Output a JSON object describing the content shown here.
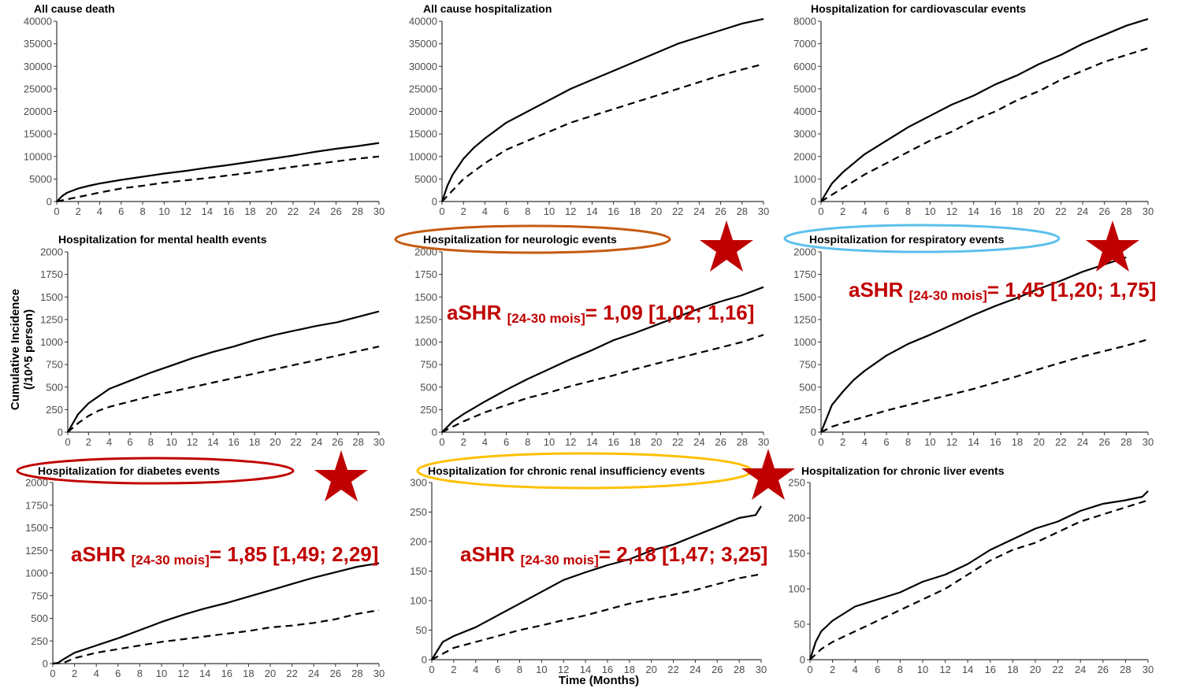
{
  "figure": {
    "y_axis_title_line1": "Cumulative Incidence",
    "y_axis_title_line2": "(/10^5 person)",
    "x_axis_title": "Time (Months)",
    "colors": {
      "curve": "#000000",
      "axis": "#333333",
      "tick_text": "#4d4d4d",
      "annotation": "#c00000",
      "star": "#c00000",
      "ellipse_neuro": "#c55a11",
      "ellipse_resp": "#5bc0eb",
      "ellipse_diab": "#c00000",
      "ellipse_renal": "#ffc000"
    }
  },
  "annotations": {
    "neuro": {
      "main": "aSHR ",
      "sub": "[24-30 mois]",
      "rest": "= 1,09 [1,02; 1,16]"
    },
    "resp": {
      "main": "aSHR ",
      "sub": "[24-30 mois]",
      "rest": "= 1,45 [1,20; 1,75]"
    },
    "diab": {
      "main": "aSHR ",
      "sub": "[24-30 mois]",
      "rest": "= 1,85 [1,49; 2,29]"
    },
    "renal": {
      "main": "aSHR ",
      "sub": "[24-30 mois]",
      "rest": "= 2,18 [1,47; 3,25]"
    }
  },
  "chart_data": [
    {
      "type": "line",
      "title": "All cause death",
      "xlim": [
        0,
        30
      ],
      "ylim": [
        0,
        40000
      ],
      "xticks": [
        0,
        2,
        4,
        6,
        8,
        10,
        12,
        14,
        16,
        18,
        20,
        22,
        24,
        26,
        28,
        30
      ],
      "yticks": [
        0,
        5000,
        10000,
        15000,
        20000,
        25000,
        30000,
        35000,
        40000
      ],
      "series": [
        {
          "style": "solid",
          "x": [
            0,
            0.5,
            1,
            2,
            3,
            4,
            6,
            8,
            10,
            12,
            14,
            16,
            18,
            20,
            22,
            24,
            26,
            28,
            30
          ],
          "y": [
            0,
            1200,
            2000,
            2900,
            3500,
            4000,
            4800,
            5500,
            6200,
            6800,
            7500,
            8100,
            8800,
            9500,
            10200,
            11000,
            11700,
            12300,
            13000
          ]
        },
        {
          "style": "dashed",
          "x": [
            0,
            1,
            2,
            4,
            6,
            8,
            10,
            12,
            14,
            16,
            18,
            20,
            22,
            24,
            26,
            28,
            30
          ],
          "y": [
            0,
            500,
            1000,
            2000,
            2900,
            3500,
            4200,
            4700,
            5200,
            5800,
            6400,
            7000,
            7700,
            8300,
            8900,
            9500,
            10000
          ]
        }
      ]
    },
    {
      "type": "line",
      "title": "All cause hospitalization",
      "xlim": [
        0,
        30
      ],
      "ylim": [
        0,
        40000
      ],
      "xticks": [
        0,
        2,
        4,
        6,
        8,
        10,
        12,
        14,
        16,
        18,
        20,
        22,
        24,
        26,
        28,
        30
      ],
      "yticks": [
        0,
        5000,
        10000,
        15000,
        20000,
        25000,
        30000,
        35000,
        40000
      ],
      "series": [
        {
          "style": "solid",
          "x": [
            0,
            0.5,
            1,
            2,
            3,
            4,
            6,
            8,
            10,
            12,
            14,
            16,
            18,
            20,
            22,
            24,
            26,
            28,
            30
          ],
          "y": [
            0,
            3500,
            6000,
            9500,
            12000,
            14000,
            17500,
            20000,
            22500,
            25000,
            27000,
            29000,
            31000,
            33000,
            35000,
            36500,
            38000,
            39500,
            40500
          ]
        },
        {
          "style": "dashed",
          "x": [
            0,
            1,
            2,
            4,
            6,
            8,
            10,
            12,
            14,
            16,
            18,
            20,
            22,
            24,
            26,
            28,
            30
          ],
          "y": [
            0,
            2500,
            5000,
            8500,
            11500,
            13500,
            15500,
            17500,
            19000,
            20500,
            22000,
            23500,
            25000,
            26500,
            28000,
            29300,
            30500
          ]
        }
      ]
    },
    {
      "type": "line",
      "title": "Hospitalization for cardiovascular events",
      "xlim": [
        0,
        30
      ],
      "ylim": [
        0,
        8000
      ],
      "xticks": [
        0,
        2,
        4,
        6,
        8,
        10,
        12,
        14,
        16,
        18,
        20,
        22,
        24,
        26,
        28,
        30
      ],
      "yticks": [
        0,
        1000,
        2000,
        3000,
        4000,
        5000,
        6000,
        7000,
        8000
      ],
      "series": [
        {
          "style": "solid",
          "x": [
            0,
            1,
            2,
            4,
            6,
            8,
            10,
            12,
            14,
            16,
            18,
            20,
            22,
            24,
            26,
            28,
            30
          ],
          "y": [
            0,
            800,
            1300,
            2100,
            2700,
            3300,
            3800,
            4300,
            4700,
            5200,
            5600,
            6100,
            6500,
            7000,
            7400,
            7800,
            8100
          ]
        },
        {
          "style": "dashed",
          "x": [
            0,
            1,
            2,
            4,
            6,
            8,
            10,
            12,
            14,
            16,
            18,
            20,
            22,
            24,
            26,
            28,
            30
          ],
          "y": [
            0,
            300,
            600,
            1200,
            1700,
            2200,
            2700,
            3100,
            3600,
            4000,
            4500,
            4900,
            5400,
            5800,
            6200,
            6500,
            6800
          ]
        }
      ]
    },
    {
      "type": "line",
      "title": "Hospitalization for mental health events",
      "xlim": [
        0,
        30
      ],
      "ylim": [
        0,
        2000
      ],
      "xticks": [
        0,
        2,
        4,
        6,
        8,
        10,
        12,
        14,
        16,
        18,
        20,
        22,
        24,
        26,
        28,
        30
      ],
      "yticks": [
        0,
        250,
        500,
        750,
        1000,
        1250,
        1500,
        1750,
        2000
      ],
      "series": [
        {
          "style": "solid",
          "x": [
            0,
            1,
            2,
            3,
            4,
            6,
            8,
            10,
            12,
            14,
            16,
            18,
            20,
            22,
            24,
            26,
            28,
            30
          ],
          "y": [
            0,
            200,
            320,
            400,
            480,
            570,
            660,
            740,
            820,
            890,
            950,
            1020,
            1080,
            1130,
            1180,
            1220,
            1280,
            1340
          ]
        },
        {
          "style": "dashed",
          "x": [
            0,
            1,
            2,
            3,
            4,
            6,
            8,
            10,
            12,
            14,
            16,
            18,
            20,
            22,
            24,
            26,
            28,
            30
          ],
          "y": [
            0,
            100,
            180,
            240,
            280,
            340,
            400,
            450,
            500,
            550,
            600,
            650,
            700,
            750,
            800,
            850,
            900,
            950
          ]
        }
      ]
    },
    {
      "type": "line",
      "title": "Hospitalization for neurologic events",
      "xlim": [
        0,
        30
      ],
      "ylim": [
        0,
        2000
      ],
      "xticks": [
        0,
        2,
        4,
        6,
        8,
        10,
        12,
        14,
        16,
        18,
        20,
        22,
        24,
        26,
        28,
        30
      ],
      "yticks": [
        0,
        250,
        500,
        750,
        1000,
        1250,
        1500,
        1750,
        2000
      ],
      "series": [
        {
          "style": "solid",
          "x": [
            0,
            1,
            2,
            4,
            6,
            8,
            10,
            12,
            14,
            16,
            18,
            20,
            22,
            24,
            26,
            28,
            30
          ],
          "y": [
            0,
            120,
            200,
            340,
            470,
            590,
            700,
            810,
            910,
            1020,
            1100,
            1190,
            1280,
            1370,
            1450,
            1520,
            1610
          ]
        },
        {
          "style": "dashed",
          "x": [
            0,
            1,
            2,
            4,
            6,
            8,
            10,
            12,
            14,
            16,
            18,
            20,
            22,
            24,
            26,
            28,
            30
          ],
          "y": [
            0,
            60,
            120,
            220,
            300,
            380,
            440,
            510,
            570,
            630,
            700,
            760,
            820,
            880,
            940,
            1000,
            1080
          ]
        }
      ]
    },
    {
      "type": "line",
      "title": "Hospitalization for respiratory events",
      "xlim": [
        0,
        30
      ],
      "ylim": [
        0,
        2000
      ],
      "xticks": [
        0,
        2,
        4,
        6,
        8,
        10,
        12,
        14,
        16,
        18,
        20,
        22,
        24,
        26,
        28,
        30
      ],
      "yticks": [
        0,
        250,
        500,
        750,
        1000,
        1250,
        1500,
        1750,
        2000
      ],
      "series": [
        {
          "style": "solid",
          "x": [
            0,
            0.5,
            1,
            2,
            3,
            4,
            6,
            8,
            10,
            12,
            14,
            16,
            18,
            20,
            22,
            24,
            26,
            28
          ],
          "y": [
            0,
            150,
            300,
            450,
            580,
            680,
            850,
            980,
            1080,
            1190,
            1300,
            1400,
            1490,
            1590,
            1680,
            1780,
            1860,
            1940
          ]
        },
        {
          "style": "dashed",
          "x": [
            0,
            1,
            2,
            4,
            6,
            8,
            10,
            12,
            14,
            16,
            18,
            20,
            22,
            24,
            26,
            28,
            30
          ],
          "y": [
            0,
            60,
            100,
            170,
            240,
            300,
            360,
            420,
            480,
            550,
            620,
            700,
            770,
            840,
            900,
            960,
            1030
          ]
        }
      ]
    },
    {
      "type": "line",
      "title": "Hospitalization for diabetes events",
      "xlim": [
        0,
        30
      ],
      "ylim": [
        0,
        2000
      ],
      "xticks": [
        0,
        2,
        4,
        6,
        8,
        10,
        12,
        14,
        16,
        18,
        20,
        22,
        24,
        26,
        28,
        30
      ],
      "yticks": [
        0,
        250,
        500,
        750,
        1000,
        1250,
        1500,
        1750,
        2000
      ],
      "series": [
        {
          "style": "solid",
          "x": [
            0,
            0.5,
            1,
            2,
            4,
            6,
            8,
            10,
            12,
            14,
            16,
            18,
            20,
            22,
            24,
            26,
            28,
            30
          ],
          "y": [
            0,
            10,
            50,
            120,
            200,
            280,
            370,
            460,
            540,
            610,
            670,
            740,
            810,
            880,
            950,
            1010,
            1070,
            1110
          ]
        },
        {
          "style": "dashed",
          "x": [
            0,
            1,
            2,
            4,
            6,
            8,
            10,
            12,
            14,
            16,
            18,
            20,
            22,
            24,
            26,
            28,
            30
          ],
          "y": [
            0,
            10,
            60,
            120,
            160,
            200,
            240,
            270,
            300,
            330,
            360,
            400,
            420,
            450,
            490,
            550,
            590
          ]
        }
      ]
    },
    {
      "type": "line",
      "title": "Hospitalization for chronic renal insufficiency events",
      "xlim": [
        0,
        30
      ],
      "ylim": [
        0,
        300
      ],
      "xticks": [
        0,
        2,
        4,
        6,
        8,
        10,
        12,
        14,
        16,
        18,
        20,
        22,
        24,
        26,
        28,
        30
      ],
      "yticks": [
        0,
        50,
        100,
        150,
        200,
        250,
        300
      ],
      "series": [
        {
          "style": "solid",
          "x": [
            0,
            1,
            2,
            4,
            6,
            8,
            10,
            12,
            14,
            16,
            18,
            20,
            22,
            24,
            26,
            28,
            29.5,
            30
          ],
          "y": [
            0,
            30,
            40,
            55,
            75,
            95,
            115,
            135,
            148,
            160,
            170,
            185,
            195,
            210,
            225,
            240,
            245,
            260
          ]
        },
        {
          "style": "dashed",
          "x": [
            0,
            1,
            2,
            4,
            6,
            8,
            10,
            12,
            14,
            16,
            18,
            20,
            22,
            24,
            26,
            28,
            30
          ],
          "y": [
            0,
            10,
            20,
            30,
            40,
            50,
            58,
            67,
            75,
            85,
            95,
            103,
            110,
            118,
            128,
            138,
            145
          ]
        }
      ]
    },
    {
      "type": "line",
      "title": "Hospitalization for chronic liver events",
      "xlim": [
        0,
        30
      ],
      "ylim": [
        0,
        250
      ],
      "xticks": [
        0,
        2,
        4,
        6,
        8,
        10,
        12,
        14,
        16,
        18,
        20,
        22,
        24,
        26,
        28,
        30
      ],
      "yticks": [
        0,
        50,
        100,
        150,
        200,
        250
      ],
      "series": [
        {
          "style": "solid",
          "x": [
            0,
            0.5,
            1,
            2,
            3,
            4,
            6,
            8,
            10,
            12,
            14,
            16,
            18,
            20,
            22,
            24,
            26,
            28,
            29.5,
            30
          ],
          "y": [
            0,
            25,
            40,
            55,
            65,
            75,
            85,
            95,
            110,
            120,
            135,
            155,
            170,
            185,
            195,
            210,
            220,
            225,
            230,
            238
          ]
        },
        {
          "style": "dashed",
          "x": [
            0,
            1,
            2,
            4,
            6,
            8,
            10,
            12,
            14,
            16,
            18,
            20,
            22,
            24,
            26,
            28,
            30
          ],
          "y": [
            0,
            15,
            25,
            40,
            55,
            70,
            85,
            100,
            120,
            140,
            155,
            165,
            180,
            195,
            205,
            215,
            225
          ]
        }
      ]
    }
  ]
}
